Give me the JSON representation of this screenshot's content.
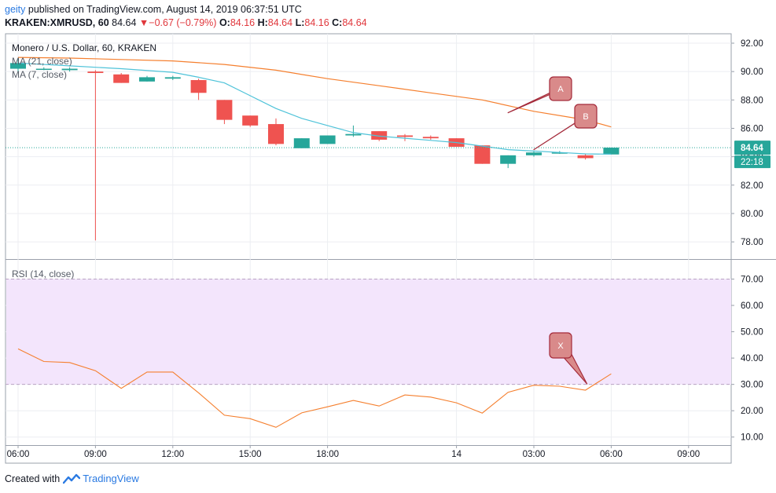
{
  "header": {
    "user": "geity",
    "published": "published on TradingView.com, August 14, 2019 06:37:51 UTC",
    "symbol": "KRAKEN:XMRUSD, 60",
    "last": "84.64",
    "arrow": "▼",
    "change": "−0.67 (−0.79%)",
    "o_label": "O:",
    "o_value": "84.16",
    "h_label": "H:",
    "h_value": "84.64",
    "l_label": "L:",
    "l_value": "84.16",
    "c_label": "C:",
    "c_value": "84.64"
  },
  "footer": {
    "created_with": "Created with",
    "brand": "TradingView"
  },
  "colors": {
    "up": "#26a69a",
    "down": "#ef5350",
    "ma21": "#f57f2e",
    "ma7": "#4fc3d9",
    "rsi": "#f57f2e",
    "rsi_band": "#f3e5fc",
    "callout_fill": "#d98a8a",
    "callout_stroke": "#a42a3a"
  },
  "chart_data": [
    {
      "type": "candlestick",
      "title": "Monero / U.S. Dollar, 60, KRAKEN",
      "legend": [
        "MA (21, close)",
        "MA (7, close)"
      ],
      "x_ticks": [
        "06:00",
        "09:00",
        "12:00",
        "15:00",
        "18:00",
        "14",
        "03:00",
        "06:00",
        "09:00"
      ],
      "y_ticks": [
        "92.00",
        "90.00",
        "88.00",
        "86.00",
        "84.00",
        "82.00",
        "80.00",
        "78.00"
      ],
      "ylim": [
        77,
        92.6
      ],
      "last_price_label": "84.64",
      "countdown_label": "22:18",
      "candles": [
        {
          "t": 0,
          "o": 90.2,
          "h": 90.9,
          "l": 90.0,
          "c": 90.6
        },
        {
          "t": 1,
          "o": 90.2,
          "h": 90.3,
          "l": 90.1,
          "c": 90.2
        },
        {
          "t": 2,
          "o": 90.1,
          "h": 90.3,
          "l": 90.0,
          "c": 90.2
        },
        {
          "t": 3,
          "o": 90.0,
          "h": 90.1,
          "l": 78.1,
          "c": 89.9
        },
        {
          "t": 4,
          "o": 89.8,
          "h": 89.9,
          "l": 89.2,
          "c": 89.2
        },
        {
          "t": 5,
          "o": 89.3,
          "h": 89.7,
          "l": 89.3,
          "c": 89.6
        },
        {
          "t": 6,
          "o": 89.5,
          "h": 89.7,
          "l": 89.4,
          "c": 89.6
        },
        {
          "t": 7,
          "o": 89.4,
          "h": 89.5,
          "l": 88.0,
          "c": 88.5
        },
        {
          "t": 8,
          "o": 88.0,
          "h": 88.0,
          "l": 86.3,
          "c": 86.6
        },
        {
          "t": 9,
          "o": 86.9,
          "h": 86.9,
          "l": 86.1,
          "c": 86.2
        },
        {
          "t": 10,
          "o": 86.3,
          "h": 86.7,
          "l": 84.8,
          "c": 84.9
        },
        {
          "t": 11,
          "o": 84.6,
          "h": 85.3,
          "l": 84.6,
          "c": 85.3
        },
        {
          "t": 12,
          "o": 84.9,
          "h": 85.5,
          "l": 84.9,
          "c": 85.5
        },
        {
          "t": 13,
          "o": 85.5,
          "h": 86.2,
          "l": 85.4,
          "c": 85.6
        },
        {
          "t": 14,
          "o": 85.8,
          "h": 85.8,
          "l": 85.1,
          "c": 85.2
        },
        {
          "t": 15,
          "o": 85.5,
          "h": 85.6,
          "l": 85.1,
          "c": 85.4
        },
        {
          "t": 16,
          "o": 85.4,
          "h": 85.5,
          "l": 85.2,
          "c": 85.3
        },
        {
          "t": 17,
          "o": 85.3,
          "h": 85.3,
          "l": 84.7,
          "c": 84.7
        },
        {
          "t": 18,
          "o": 84.8,
          "h": 84.8,
          "l": 83.5,
          "c": 83.5
        },
        {
          "t": 19,
          "o": 83.5,
          "h": 84.1,
          "l": 83.2,
          "c": 84.1
        },
        {
          "t": 20,
          "o": 84.1,
          "h": 84.4,
          "l": 84.0,
          "c": 84.3
        },
        {
          "t": 21,
          "o": 84.3,
          "h": 84.4,
          "l": 84.2,
          "c": 84.3
        },
        {
          "t": 22,
          "o": 84.1,
          "h": 84.2,
          "l": 83.8,
          "c": 83.9
        },
        {
          "t": 23,
          "o": 84.16,
          "h": 84.64,
          "l": 84.16,
          "c": 84.64
        }
      ],
      "ma21": [
        [
          0,
          91.0
        ],
        [
          2,
          90.95
        ],
        [
          4,
          90.85
        ],
        [
          6,
          90.75
        ],
        [
          8,
          90.5
        ],
        [
          10,
          90.1
        ],
        [
          12,
          89.5
        ],
        [
          14,
          89.0
        ],
        [
          16,
          88.5
        ],
        [
          18,
          88.0
        ],
        [
          20,
          87.2
        ],
        [
          22,
          86.6
        ],
        [
          23,
          86.1
        ]
      ],
      "ma7": [
        [
          0,
          90.6
        ],
        [
          2,
          90.4
        ],
        [
          4,
          90.2
        ],
        [
          6,
          89.95
        ],
        [
          7,
          89.6
        ],
        [
          8,
          89.2
        ],
        [
          9,
          88.3
        ],
        [
          10,
          87.4
        ],
        [
          11,
          86.7
        ],
        [
          12,
          86.2
        ],
        [
          13,
          85.7
        ],
        [
          14,
          85.45
        ],
        [
          15,
          85.3
        ],
        [
          16,
          85.15
        ],
        [
          17,
          85.0
        ],
        [
          18,
          84.75
        ],
        [
          19,
          84.5
        ],
        [
          20,
          84.4
        ],
        [
          21,
          84.3
        ],
        [
          22,
          84.2
        ],
        [
          23,
          84.18
        ]
      ],
      "annotations": [
        {
          "label": "A",
          "target": [
            19,
            87.1
          ]
        },
        {
          "label": "B",
          "target": [
            20,
            84.5
          ]
        }
      ]
    },
    {
      "type": "line",
      "title": "RSI (14, close)",
      "y_ticks": [
        "70.00",
        "60.00",
        "50.00",
        "40.00",
        "30.00",
        "20.00",
        "10.00"
      ],
      "ylim": [
        6,
        74
      ],
      "band": [
        30,
        70
      ],
      "x": [
        0,
        1,
        2,
        3,
        4,
        5,
        6,
        7,
        8,
        9,
        10,
        11,
        12,
        13,
        14,
        15,
        16,
        17,
        18,
        19,
        20,
        21,
        22,
        23
      ],
      "values": [
        43.5,
        38.7,
        38.3,
        35.2,
        28.5,
        34.7,
        34.7,
        26.8,
        18.3,
        17.0,
        13.7,
        19.2,
        21.5,
        23.9,
        21.8,
        26.0,
        25.2,
        23.0,
        19.1,
        27.0,
        29.7,
        29.3,
        27.8,
        34.0
      ],
      "annotations": [
        {
          "label": "X",
          "target": [
            22,
            29.0
          ]
        }
      ]
    }
  ]
}
